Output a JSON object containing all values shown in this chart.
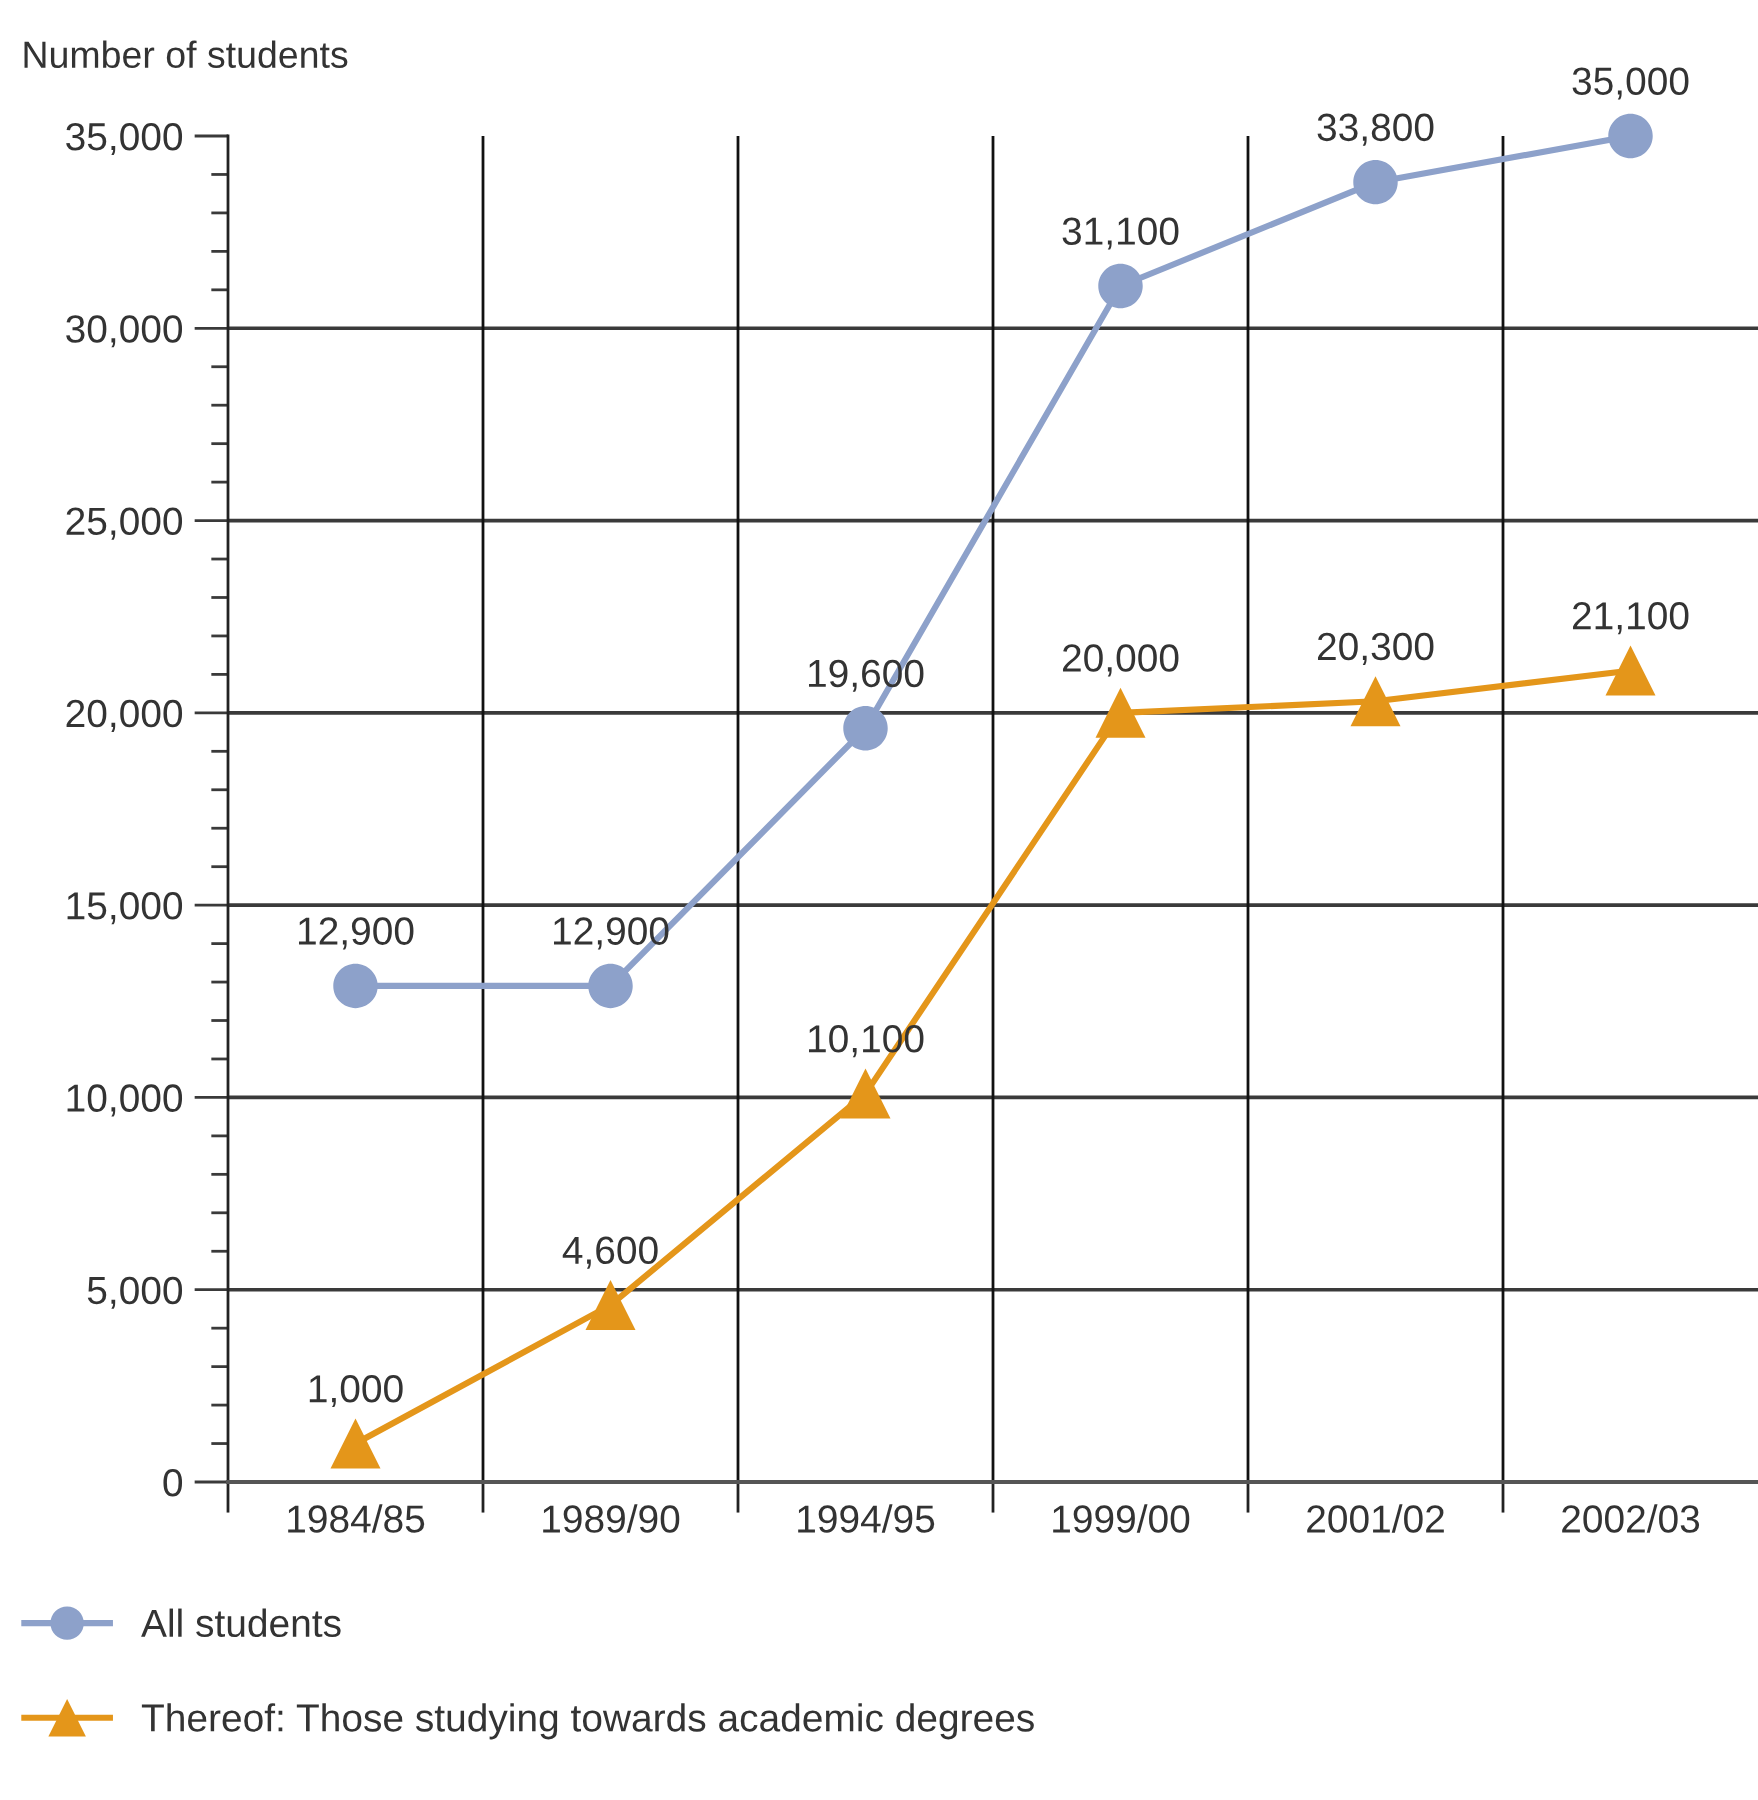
{
  "chart_data": {
    "type": "line",
    "ylabel": "Number of students",
    "categories": [
      "1984/85",
      "1989/90",
      "1994/95",
      "1999/00",
      "2001/02",
      "2002/03"
    ],
    "series": [
      {
        "name": "All students",
        "color": "#8da1ca",
        "marker": "circle",
        "values": [
          12900,
          12900,
          19600,
          31100,
          33800,
          35000
        ],
        "value_labels": [
          "12,900",
          "12,900",
          "19,600",
          "31,100",
          "33,800",
          "35,000"
        ]
      },
      {
        "name": "Thereof: Those studying towards academic degrees",
        "color": "#e4961a",
        "marker": "triangle",
        "values": [
          1000,
          4600,
          10100,
          20000,
          20300,
          21100
        ],
        "value_labels": [
          "1,000",
          "4,600",
          "10,100",
          "20,000",
          "20,300",
          "21,100"
        ]
      }
    ],
    "ylim": [
      0,
      35000
    ],
    "yticks": [
      0,
      {
        "value": 1000,
        "label": null
      },
      {
        "value": 2000,
        "label": null
      },
      {
        "value": 3000,
        "label": null
      },
      {
        "value": 4000,
        "label": null
      },
      {
        "value": 5000,
        "label": "5,000"
      },
      {
        "value": 6000,
        "label": null
      },
      {
        "value": 7000,
        "label": null
      },
      {
        "value": 8000,
        "label": null
      },
      {
        "value": 9000,
        "label": null
      },
      {
        "value": 10000,
        "label": "10,000"
      },
      {
        "value": 11000,
        "label": null
      },
      {
        "value": 12000,
        "label": null
      },
      {
        "value": 13000,
        "label": null
      },
      {
        "value": 14000,
        "label": null
      },
      {
        "value": 15000,
        "label": "15,000"
      },
      {
        "value": 16000,
        "label": null
      },
      {
        "value": 17000,
        "label": null
      },
      {
        "value": 18000,
        "label": null
      },
      {
        "value": 19000,
        "label": null
      },
      {
        "value": 20000,
        "label": "20,000"
      },
      {
        "value": 21000,
        "label": null
      },
      {
        "value": 22000,
        "label": null
      },
      {
        "value": 23000,
        "label": null
      },
      {
        "value": 24000,
        "label": null
      },
      {
        "value": 25000,
        "label": "25,000"
      },
      {
        "value": 26000,
        "label": null
      },
      {
        "value": 27000,
        "label": null
      },
      {
        "value": 28000,
        "label": null
      },
      {
        "value": 29000,
        "label": null
      },
      {
        "value": 30000,
        "label": "30,000"
      },
      {
        "value": 31000,
        "label": null
      },
      {
        "value": 32000,
        "label": null
      },
      {
        "value": 33000,
        "label": null
      },
      {
        "value": 34000,
        "label": null
      },
      {
        "value": 35000,
        "label": "35,000"
      }
    ],
    "grid": true,
    "legend": "bottom left",
    "line_style": "solid"
  }
}
